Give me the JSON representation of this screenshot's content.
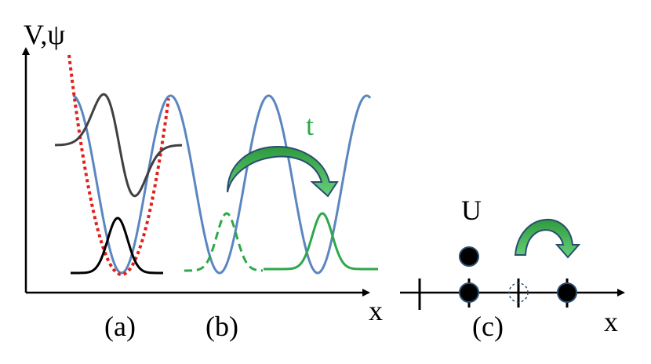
{
  "labels": {
    "y_axis": "V,ψ",
    "x_axis_left": "x",
    "hopping": "t",
    "interaction": "U",
    "panel_a": "(a)",
    "panel_b": "(b)",
    "panel_c": "(c)",
    "x_axis_right": "x"
  }
}
